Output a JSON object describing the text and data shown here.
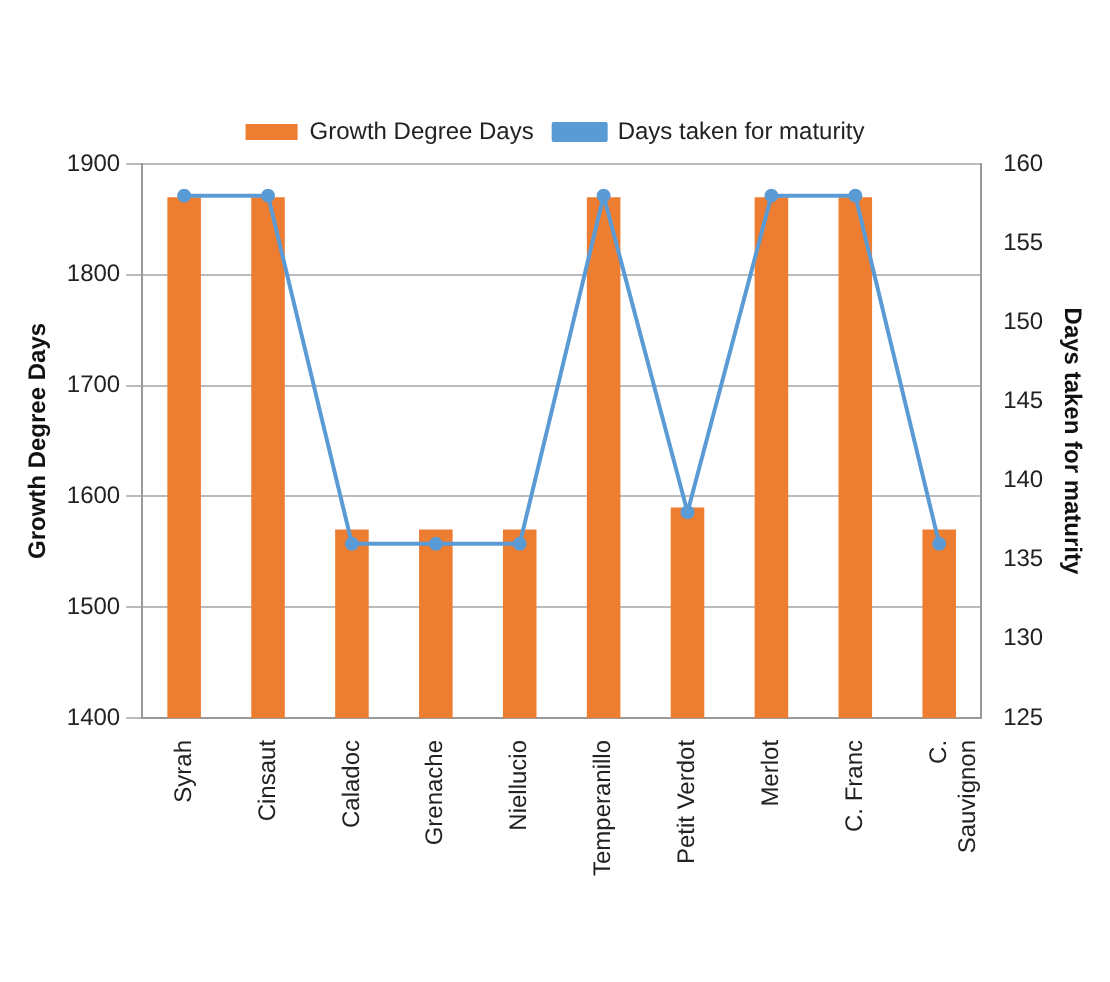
{
  "chart_data": {
    "type": "bar",
    "categories": [
      "Syrah",
      "Cinsaut",
      "Caladoc",
      "Grenache",
      "Niellucio",
      "Temperanillo",
      "Petit Verdot",
      "Merlot",
      "C. Franc",
      "C. Sauvignon"
    ],
    "series": [
      {
        "name": "Growth Degree Days",
        "color": "#ed7d31",
        "values": [
          1870,
          1870,
          1570,
          1570,
          1570,
          1870,
          1590,
          1870,
          1870,
          1570
        ]
      },
      {
        "name": "Days taken for maturity",
        "type": "line",
        "axis": "y2",
        "color": "#5b9bd5",
        "marker": "circle",
        "values": [
          158,
          158,
          136,
          136,
          136,
          158,
          138,
          158,
          158,
          136
        ]
      }
    ],
    "ylabel": "Growth Degree Days",
    "y2label": "Days taken for maturity",
    "ylim": [
      1400,
      1900
    ],
    "yticks": [
      1400,
      1500,
      1600,
      1700,
      1800,
      1900
    ],
    "y2lim": [
      125,
      160
    ],
    "y2ticks": [
      125,
      130,
      135,
      140,
      145,
      150,
      155,
      160
    ],
    "grid": "y",
    "legend": "top"
  }
}
